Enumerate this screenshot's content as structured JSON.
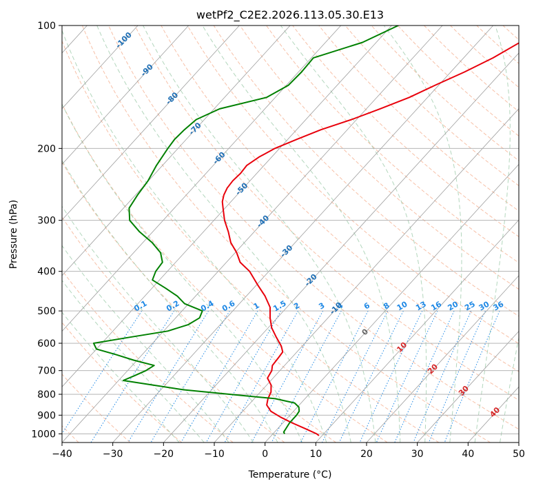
{
  "chart_data": {
    "type": "line",
    "chart_kind": "skew-T log-p",
    "title": "wetPf2_C2E2.2026.113.05.30.E13",
    "xlabel": "Temperature (°C)",
    "ylabel": "Pressure (hPa)",
    "xlim": [
      -40,
      50
    ],
    "ylim": [
      1050,
      100
    ],
    "y_scale": "log",
    "x_ticks": [
      -40,
      -30,
      -20,
      -10,
      0,
      10,
      20,
      30,
      40,
      50
    ],
    "y_ticks": [
      100,
      200,
      300,
      400,
      500,
      600,
      700,
      800,
      900,
      1000
    ],
    "grid": true,
    "colors": {
      "temperature": "#e8000b",
      "dewpoint": "#008000",
      "dry_adiabat": "#f4a582",
      "moist_adiabat": "#92c5a0",
      "mixing_ratio": "#1e88e5",
      "isotherm": "#9e9e9e"
    },
    "series": [
      {
        "color": "#e8000b",
        "points": [
          [
            100,
            -19.5
          ],
          [
            110,
            -21.7
          ],
          [
            120,
            -24.2
          ],
          [
            130,
            -27.3
          ],
          [
            140,
            -30.7
          ],
          [
            150,
            -33.6
          ],
          [
            160,
            -37.3
          ],
          [
            170,
            -41.0
          ],
          [
            180,
            -45.2
          ],
          [
            190,
            -48.2
          ],
          [
            200,
            -50.9
          ],
          [
            210,
            -52.5
          ],
          [
            220,
            -53.4
          ],
          [
            230,
            -53.2
          ],
          [
            240,
            -53.4
          ],
          [
            250,
            -53.2
          ],
          [
            260,
            -52.6
          ],
          [
            270,
            -51.7
          ],
          [
            280,
            -50.4
          ],
          [
            300,
            -47.9
          ],
          [
            320,
            -45.1
          ],
          [
            340,
            -42.7
          ],
          [
            360,
            -39.7
          ],
          [
            380,
            -37.3
          ],
          [
            400,
            -33.8
          ],
          [
            430,
            -30.0
          ],
          [
            460,
            -26.3
          ],
          [
            490,
            -23.3
          ],
          [
            520,
            -21.4
          ],
          [
            550,
            -19.3
          ],
          [
            580,
            -16.7
          ],
          [
            610,
            -14.1
          ],
          [
            630,
            -12.8
          ],
          [
            650,
            -12.6
          ],
          [
            680,
            -12.4
          ],
          [
            700,
            -11.6
          ],
          [
            730,
            -11.1
          ],
          [
            760,
            -9.1
          ],
          [
            790,
            -7.9
          ],
          [
            820,
            -7.3
          ],
          [
            850,
            -6.4
          ],
          [
            880,
            -4.5
          ],
          [
            910,
            -1.5
          ],
          [
            940,
            1.8
          ],
          [
            970,
            5.3
          ],
          [
            1000,
            8.6
          ],
          [
            1010,
            9.4
          ]
        ]
      },
      {
        "color": "#008000",
        "points": [
          [
            100,
            -48.7
          ],
          [
            110,
            -52.7
          ],
          [
            120,
            -59.6
          ],
          [
            130,
            -59.4
          ],
          [
            140,
            -59.6
          ],
          [
            150,
            -61.7
          ],
          [
            160,
            -68.9
          ],
          [
            170,
            -71.6
          ],
          [
            180,
            -72.1
          ],
          [
            190,
            -72.3
          ],
          [
            200,
            -72.0
          ],
          [
            220,
            -71.2
          ],
          [
            240,
            -70.1
          ],
          [
            260,
            -69.6
          ],
          [
            280,
            -68.9
          ],
          [
            300,
            -66.6
          ],
          [
            320,
            -62.6
          ],
          [
            340,
            -58.2
          ],
          [
            360,
            -54.7
          ],
          [
            380,
            -52.6
          ],
          [
            400,
            -52.3
          ],
          [
            420,
            -51.4
          ],
          [
            440,
            -47.3
          ],
          [
            460,
            -43.6
          ],
          [
            480,
            -40.8
          ],
          [
            500,
            -36.0
          ],
          [
            520,
            -35.3
          ],
          [
            540,
            -36.3
          ],
          [
            560,
            -39.2
          ],
          [
            580,
            -45.6
          ],
          [
            600,
            -51.6
          ],
          [
            620,
            -50.0
          ],
          [
            640,
            -45.1
          ],
          [
            660,
            -40.7
          ],
          [
            680,
            -35.7
          ],
          [
            700,
            -36.4
          ],
          [
            720,
            -37.7
          ],
          [
            740,
            -39.1
          ],
          [
            760,
            -32.3
          ],
          [
            780,
            -25.5
          ],
          [
            800,
            -15.7
          ],
          [
            820,
            -5.9
          ],
          [
            840,
            -1.3
          ],
          [
            860,
            0.3
          ],
          [
            880,
            1.1
          ],
          [
            900,
            1.3
          ],
          [
            940,
            1.3
          ],
          [
            970,
            1.6
          ],
          [
            990,
            1.8
          ],
          [
            1000,
            2.3
          ]
        ]
      }
    ],
    "mixing_ratio_labels": [
      "0.1",
      "0.2",
      "0.4",
      "0.6",
      "1",
      "1.5",
      "2",
      "3",
      "4",
      "6",
      "8",
      "10",
      "13",
      "16",
      "20",
      "25",
      "30",
      "36"
    ],
    "dry_adiabat_labels": [
      "-100",
      "-90",
      "-80",
      "-70",
      "-60",
      "-50",
      "-40",
      "-30",
      "-20",
      "-10"
    ],
    "moist_adiabat_labels": [
      "0",
      "10",
      "20",
      "30",
      "40"
    ]
  }
}
